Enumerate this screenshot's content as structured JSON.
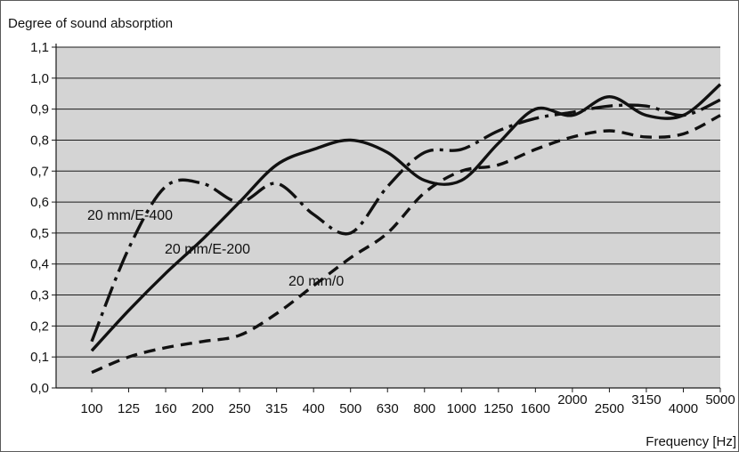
{
  "chart_data": {
    "type": "line",
    "ylabel": "Degree of sound absorption",
    "xlabel": "Frequency [Hz]",
    "x_tick_labels": [
      "100",
      "125",
      "160",
      "200",
      "250",
      "315",
      "400",
      "500",
      "630",
      "800",
      "1000",
      "1250",
      "1600",
      "2000",
      "2500",
      "3150",
      "4000",
      "5000"
    ],
    "y_tick_labels": [
      "0,0",
      "0,1",
      "0,2",
      "0,3",
      "0,4",
      "0,5",
      "0,6",
      "0,7",
      "0,8",
      "0,9",
      "1,0",
      "1,1"
    ],
    "ylim": [
      0,
      1.1
    ],
    "grid": "horizontal",
    "legend": "none",
    "series": [
      {
        "name": "20 mm/E-400",
        "style": "dash-dot",
        "x": [
          "100",
          "125",
          "160",
          "200",
          "250",
          "315",
          "400",
          "500",
          "630",
          "800",
          "1000",
          "1250",
          "1600",
          "2000",
          "2500",
          "3150",
          "4000",
          "5000"
        ],
        "values": [
          0.15,
          0.45,
          0.65,
          0.66,
          0.6,
          0.66,
          0.56,
          0.5,
          0.65,
          0.76,
          0.77,
          0.83,
          0.87,
          0.89,
          0.91,
          0.91,
          0.88,
          0.93
        ]
      },
      {
        "name": "20 mm/E-200",
        "style": "solid",
        "x": [
          "100",
          "125",
          "160",
          "200",
          "250",
          "315",
          "400",
          "500",
          "630",
          "800",
          "1000",
          "1250",
          "1600",
          "2000",
          "2500",
          "3150",
          "4000",
          "5000"
        ],
        "values": [
          0.12,
          0.25,
          0.37,
          0.48,
          0.6,
          0.72,
          0.77,
          0.8,
          0.76,
          0.67,
          0.67,
          0.79,
          0.9,
          0.88,
          0.94,
          0.88,
          0.88,
          0.98
        ]
      },
      {
        "name": "20 mm/0",
        "style": "dashed",
        "x": [
          "100",
          "125",
          "160",
          "200",
          "250",
          "315",
          "400",
          "500",
          "630",
          "800",
          "1000",
          "1250",
          "1600",
          "2000",
          "2500",
          "3150",
          "4000",
          "5000"
        ],
        "values": [
          0.05,
          0.1,
          0.13,
          0.15,
          0.17,
          0.24,
          0.33,
          0.42,
          0.5,
          0.63,
          0.7,
          0.72,
          0.77,
          0.81,
          0.83,
          0.81,
          0.82,
          0.88
        ]
      }
    ]
  }
}
